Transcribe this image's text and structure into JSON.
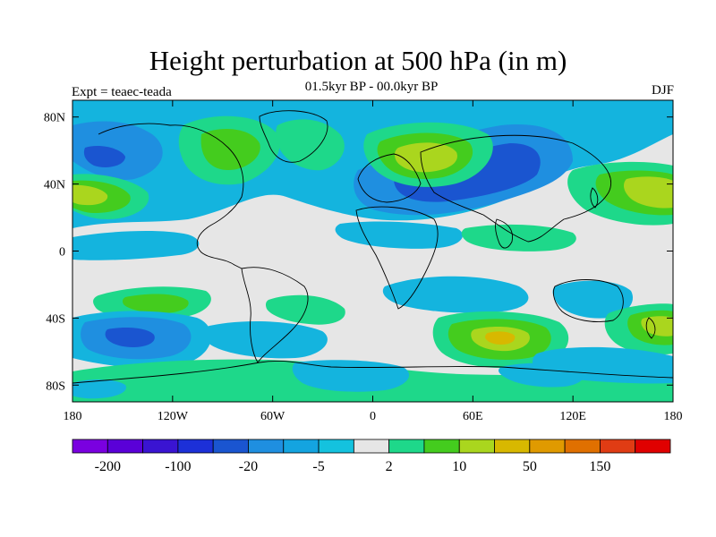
{
  "title": "Height perturbation at 500 hPa (in m)",
  "subtitle": "01.5kyr BP - 00.0kyr BP",
  "left_label": "Expt = teaec-teada",
  "right_label": "DJF",
  "map": {
    "projection": "cylindrical-equidistant",
    "lon_range": [
      -180,
      180
    ],
    "lat_range": [
      -90,
      90
    ],
    "background_color": "#e6e6e6",
    "coastline_color": "#000000",
    "lon_ticks": [
      {
        "value": -180,
        "label": "180"
      },
      {
        "value": -120,
        "label": "120W"
      },
      {
        "value": -60,
        "label": "60W"
      },
      {
        "value": 0,
        "label": "0"
      },
      {
        "value": 60,
        "label": "60E"
      },
      {
        "value": 120,
        "label": "120E"
      },
      {
        "value": 180,
        "label": "180"
      }
    ],
    "lat_ticks": [
      {
        "value": 80,
        "label": "80N"
      },
      {
        "value": 40,
        "label": "40N"
      },
      {
        "value": 0,
        "label": "0"
      },
      {
        "value": -40,
        "label": "40S"
      },
      {
        "value": -80,
        "label": "80S"
      }
    ],
    "colors": {
      "neg_strong": "#1a55d0",
      "neg_mid": "#1f8fe0",
      "neg_weak": "#14b4de",
      "pos_weak": "#1ed88a",
      "pos_mid": "#44cc1e",
      "pos_strong": "#aad61e",
      "pos_peak": "#d8b800"
    }
  },
  "colorbar": {
    "colors": [
      "#7a00e0",
      "#5a00d8",
      "#3a14d2",
      "#1c30d8",
      "#1a55d0",
      "#1f8fe0",
      "#14a4e0",
      "#14c2de",
      "#e6e6e6",
      "#1ed88a",
      "#44cc1e",
      "#aad61e",
      "#d8b800",
      "#e09a00",
      "#e07000",
      "#e03c14",
      "#e00000"
    ],
    "labels": [
      {
        "text": "-200",
        "boundary": 1
      },
      {
        "text": "-100",
        "boundary": 3
      },
      {
        "text": "-20",
        "boundary": 5
      },
      {
        "text": "-5",
        "boundary": 7
      },
      {
        "text": "2",
        "boundary": 9
      },
      {
        "text": "10",
        "boundary": 11
      },
      {
        "text": "50",
        "boundary": 13
      },
      {
        "text": "150",
        "boundary": 15
      }
    ]
  }
}
